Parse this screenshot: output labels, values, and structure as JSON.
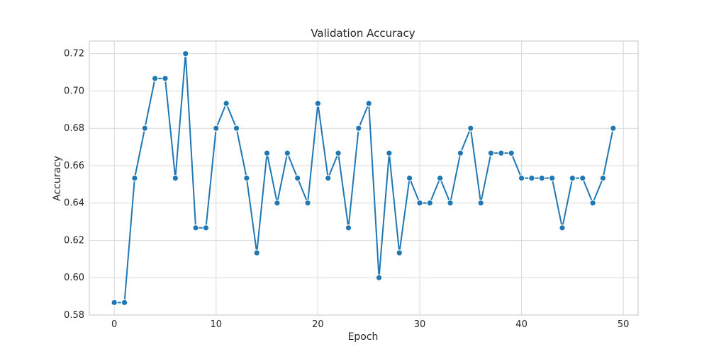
{
  "chart_data": {
    "type": "line",
    "title": "Validation Accuracy",
    "xlabel": "Epoch",
    "ylabel": "Accuracy",
    "x": [
      0,
      1,
      2,
      3,
      4,
      5,
      6,
      7,
      8,
      9,
      10,
      11,
      12,
      13,
      14,
      15,
      16,
      17,
      18,
      19,
      20,
      21,
      22,
      23,
      24,
      25,
      26,
      27,
      28,
      29,
      30,
      31,
      32,
      33,
      34,
      35,
      36,
      37,
      38,
      39,
      40,
      41,
      42,
      43,
      44,
      45,
      46,
      47,
      48,
      49
    ],
    "series": [
      {
        "values": [
          0.5867,
          0.5867,
          0.6533,
          0.68,
          0.7067,
          0.7067,
          0.6533,
          0.72,
          0.6267,
          0.6267,
          0.68,
          0.6933,
          0.68,
          0.6533,
          0.6133,
          0.6667,
          0.64,
          0.6667,
          0.6533,
          0.64,
          0.6933,
          0.6533,
          0.6667,
          0.6267,
          0.68,
          0.6933,
          0.6,
          0.6667,
          0.6133,
          0.6533,
          0.64,
          0.64,
          0.6533,
          0.64,
          0.6667,
          0.68,
          0.64,
          0.6667,
          0.6667,
          0.6667,
          0.6533,
          0.6533,
          0.6533,
          0.6533,
          0.6267,
          0.6533,
          0.6533,
          0.64,
          0.6533,
          0.68
        ],
        "color": "#1f77b4"
      }
    ],
    "xlim": [
      -2.45,
      51.45
    ],
    "ylim": [
      0.58,
      0.7267
    ],
    "xticks": [
      0,
      10,
      20,
      30,
      40,
      50
    ],
    "yticks": [
      0.58,
      0.6,
      0.62,
      0.64,
      0.66,
      0.68,
      0.7,
      0.72
    ],
    "xtick_labels": [
      "0",
      "10",
      "20",
      "30",
      "40",
      "50"
    ],
    "ytick_labels": [
      "0.58",
      "0.60",
      "0.62",
      "0.64",
      "0.66",
      "0.68",
      "0.70",
      "0.72"
    ],
    "grid": true,
    "legend": false,
    "marker": "circle"
  }
}
